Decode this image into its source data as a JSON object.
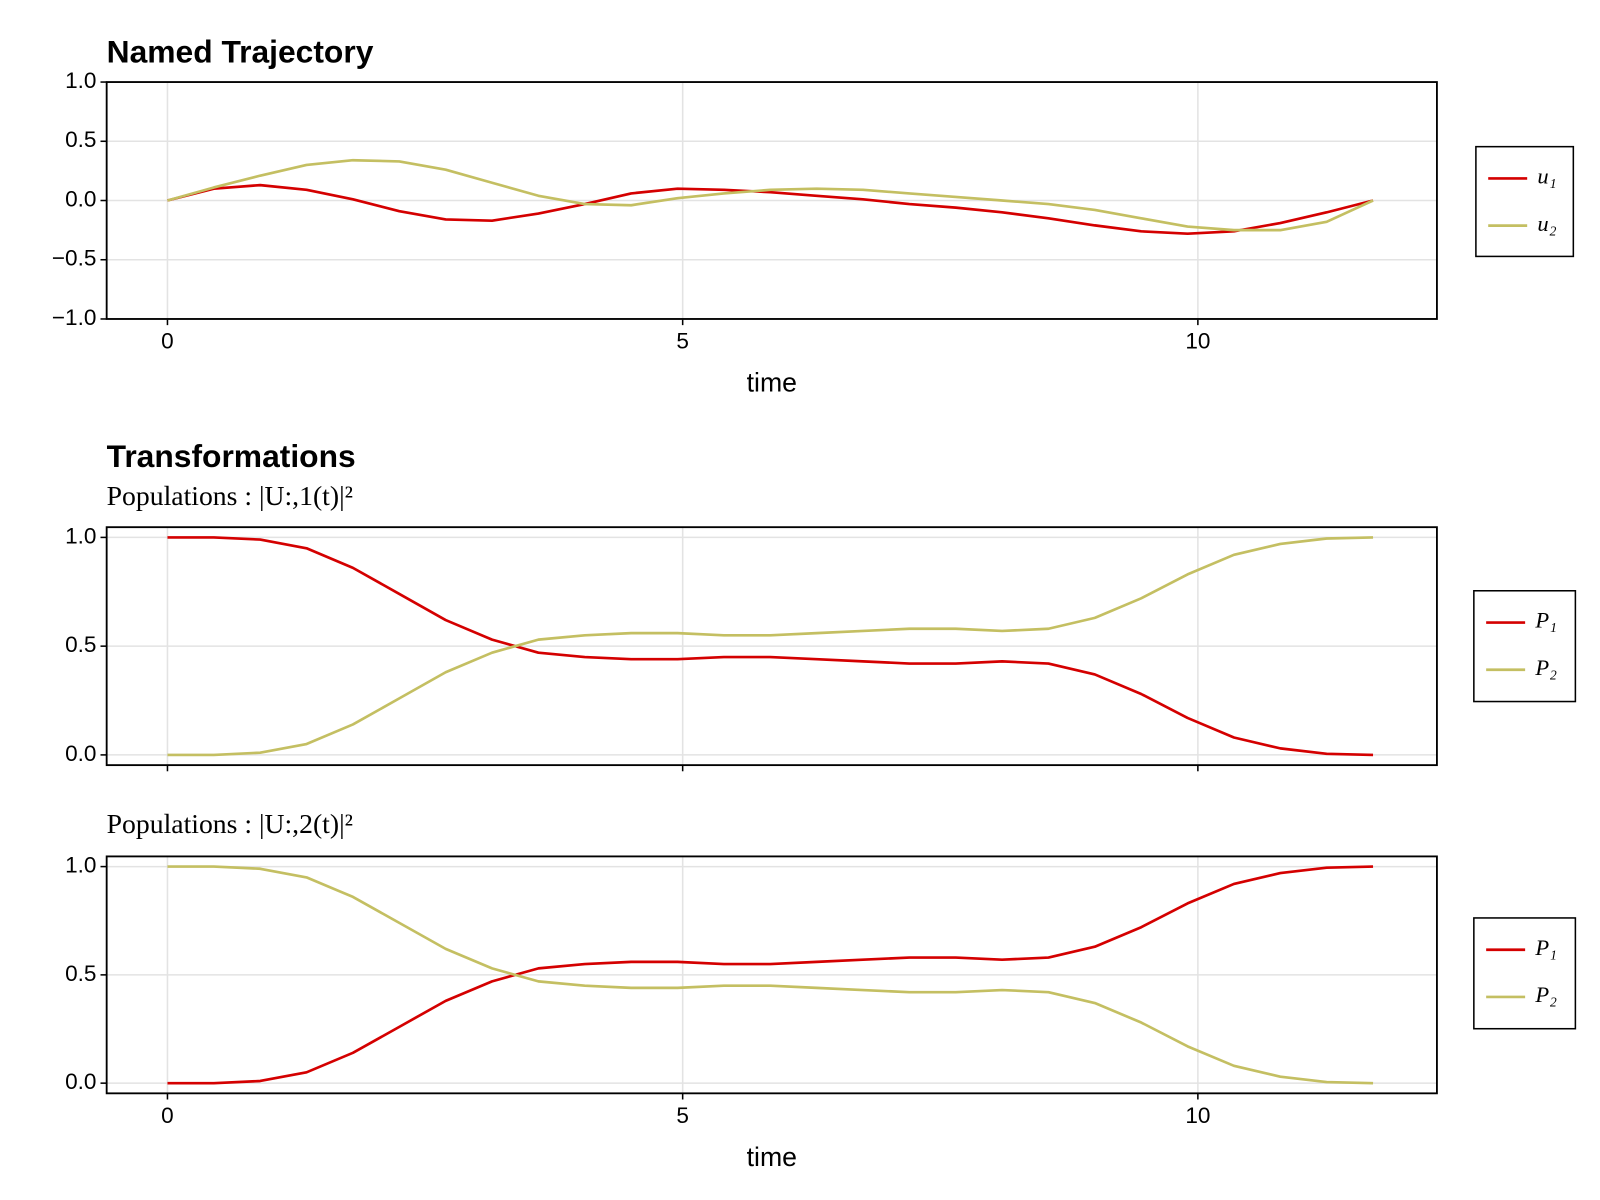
{
  "chart_data": [
    {
      "type": "line",
      "title": "Named Trajectory",
      "xlabel": "time",
      "x": [
        0,
        0.45,
        0.9,
        1.35,
        1.8,
        2.25,
        2.7,
        3.15,
        3.6,
        4.05,
        4.5,
        4.95,
        5.4,
        5.85,
        6.3,
        6.75,
        7.2,
        7.65,
        8.1,
        8.55,
        9.0,
        9.45,
        9.9,
        10.35,
        10.8,
        11.25,
        11.7
      ],
      "series": [
        {
          "name": "u₁",
          "color": "#d40000",
          "values": [
            0,
            0.1,
            0.13,
            0.09,
            0.01,
            -0.09,
            -0.16,
            -0.17,
            -0.11,
            -0.03,
            0.06,
            0.1,
            0.09,
            0.07,
            0.04,
            0.01,
            -0.03,
            -0.06,
            -0.1,
            -0.15,
            -0.21,
            -0.26,
            -0.28,
            -0.26,
            -0.19,
            -0.1,
            0
          ]
        },
        {
          "name": "u₂",
          "color": "#c4bf62",
          "values": [
            0,
            0.11,
            0.21,
            0.3,
            0.34,
            0.33,
            0.26,
            0.15,
            0.04,
            -0.03,
            -0.04,
            0.02,
            0.06,
            0.09,
            0.1,
            0.09,
            0.06,
            0.03,
            0,
            -0.03,
            -0.08,
            -0.15,
            -0.22,
            -0.25,
            -0.25,
            -0.18,
            0
          ]
        }
      ],
      "xlim": [
        -0.59,
        12.32
      ],
      "xticks": [
        0,
        5,
        10
      ],
      "show_xtick_labels": true,
      "ylim": [
        -1,
        1
      ],
      "yticks": [
        {
          "value": 1,
          "label": "1.0"
        },
        0.5,
        {
          "value": 0,
          "label": "0.0"
        },
        {
          "value": -0.5,
          "label": "−0.5"
        },
        {
          "value": -1,
          "label": "−1.0"
        }
      ],
      "grid": true,
      "legend": "right"
    },
    {
      "type": "line",
      "title": "Transformations",
      "subtitle": "Populations :  |U:,1(t)|²",
      "x": [
        0,
        0.45,
        0.9,
        1.35,
        1.8,
        2.25,
        2.7,
        3.15,
        3.6,
        4.05,
        4.5,
        4.95,
        5.4,
        5.85,
        6.3,
        6.75,
        7.2,
        7.65,
        8.1,
        8.55,
        9.0,
        9.45,
        9.9,
        10.35,
        10.8,
        11.25,
        11.7
      ],
      "series": [
        {
          "name": "P₁",
          "color": "#d40000",
          "values": [
            1,
            1,
            0.99,
            0.95,
            0.86,
            0.74,
            0.62,
            0.53,
            0.47,
            0.45,
            0.44,
            0.44,
            0.45,
            0.45,
            0.44,
            0.43,
            0.42,
            0.42,
            0.43,
            0.42,
            0.37,
            0.28,
            0.17,
            0.08,
            0.03,
            0.005,
            0
          ]
        },
        {
          "name": "P₂",
          "color": "#c4bf62",
          "values": [
            0,
            0,
            0.01,
            0.05,
            0.14,
            0.26,
            0.38,
            0.47,
            0.53,
            0.55,
            0.56,
            0.56,
            0.55,
            0.55,
            0.56,
            0.57,
            0.58,
            0.58,
            0.57,
            0.58,
            0.63,
            0.72,
            0.83,
            0.92,
            0.97,
            0.995,
            1
          ]
        }
      ],
      "xlim": [
        -0.59,
        12.32
      ],
      "xticks": [
        0,
        5,
        10
      ],
      "show_xtick_labels": false,
      "ylim": [
        -0.047,
        1.047
      ],
      "yticks": [
        {
          "value": 1,
          "label": "1.0"
        },
        0.5,
        {
          "value": 0,
          "label": "0.0"
        }
      ],
      "grid": true,
      "legend": "right"
    },
    {
      "type": "line",
      "subtitle": "Populations :  |U:,2(t)|²",
      "xlabel": "time",
      "x": [
        0,
        0.45,
        0.9,
        1.35,
        1.8,
        2.25,
        2.7,
        3.15,
        3.6,
        4.05,
        4.5,
        4.95,
        5.4,
        5.85,
        6.3,
        6.75,
        7.2,
        7.65,
        8.1,
        8.55,
        9.0,
        9.45,
        9.9,
        10.35,
        10.8,
        11.25,
        11.7
      ],
      "series": [
        {
          "name": "P₁",
          "color": "#d40000",
          "values": [
            0,
            0,
            0.01,
            0.05,
            0.14,
            0.26,
            0.38,
            0.47,
            0.53,
            0.55,
            0.56,
            0.56,
            0.55,
            0.55,
            0.56,
            0.57,
            0.58,
            0.58,
            0.57,
            0.58,
            0.63,
            0.72,
            0.83,
            0.92,
            0.97,
            0.995,
            1
          ]
        },
        {
          "name": "P₂",
          "color": "#c4bf62",
          "values": [
            1,
            1,
            0.99,
            0.95,
            0.86,
            0.74,
            0.62,
            0.53,
            0.47,
            0.45,
            0.44,
            0.44,
            0.45,
            0.45,
            0.44,
            0.43,
            0.42,
            0.42,
            0.43,
            0.42,
            0.37,
            0.28,
            0.17,
            0.08,
            0.03,
            0.005,
            0
          ]
        }
      ],
      "xlim": [
        -0.59,
        12.32
      ],
      "xticks": [
        0,
        5,
        10
      ],
      "show_xtick_labels": true,
      "ylim": [
        -0.047,
        1.047
      ],
      "yticks": [
        {
          "value": 1,
          "label": "1.0"
        },
        0.5,
        {
          "value": 0,
          "label": "0.0"
        }
      ],
      "grid": true,
      "legend": "right"
    }
  ]
}
